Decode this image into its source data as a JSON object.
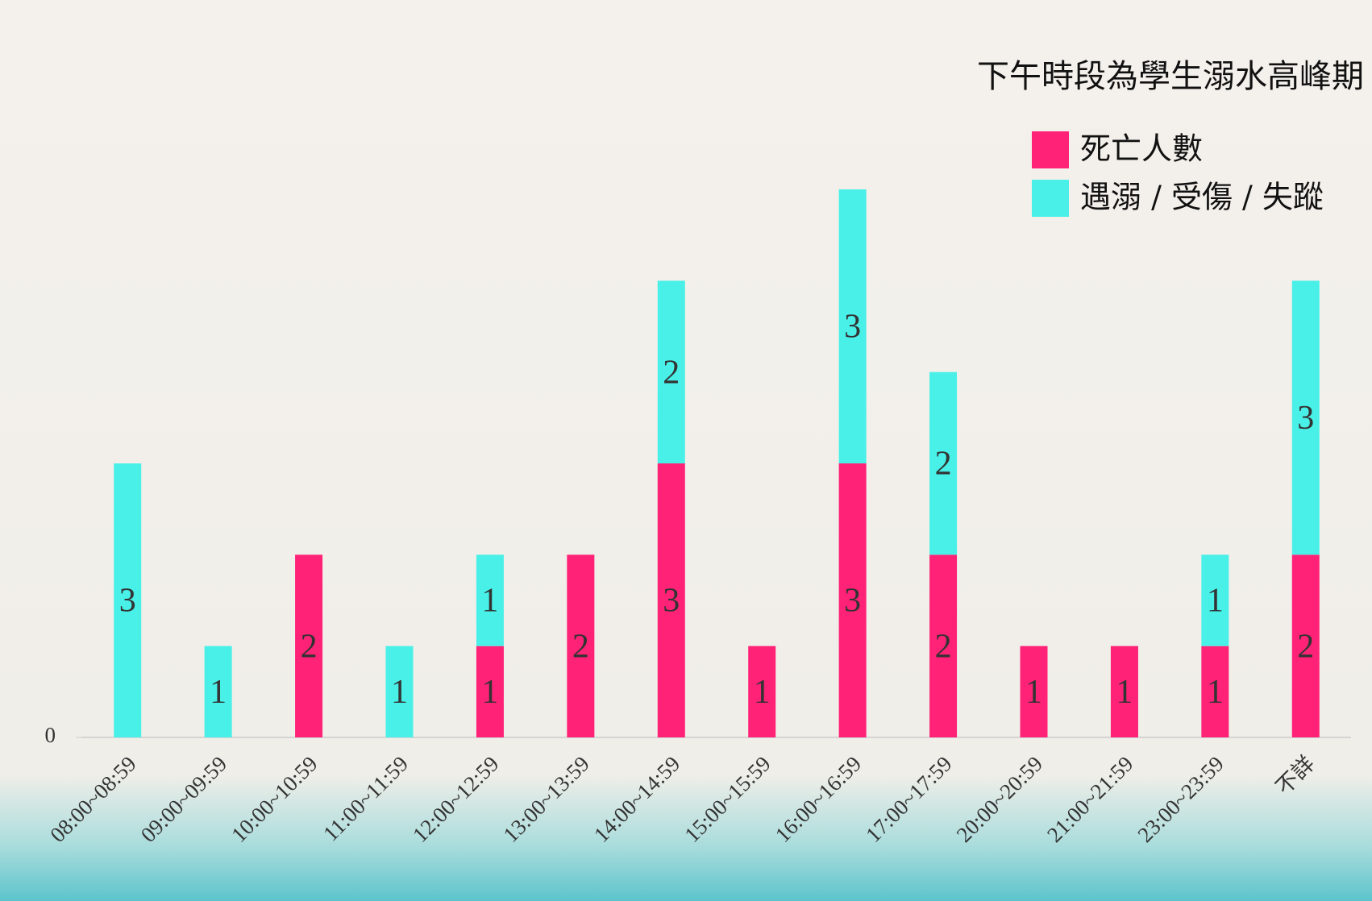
{
  "chart_data": {
    "type": "stacked-bar",
    "annotation": "下午時段為學生溺水高峰期",
    "categories": [
      "08:00~08:59",
      "09:00~09:59",
      "10:00~10:59",
      "11:00~11:59",
      "12:00~12:59",
      "13:00~13:59",
      "14:00~14:59",
      "15:00~15:59",
      "16:00~16:59",
      "17:00~17:59",
      "20:00~20:59",
      "21:00~21:59",
      "23:00~23:59",
      "不詳"
    ],
    "series": [
      {
        "name": "死亡人數",
        "color": "#ff2277",
        "values": [
          null,
          null,
          2,
          null,
          1,
          2,
          3,
          1,
          3,
          2,
          1,
          1,
          1,
          2
        ]
      },
      {
        "name": "遇溺 / 受傷 / 失蹤",
        "color": "#48f0e8",
        "values": [
          3,
          1,
          null,
          1,
          1,
          null,
          2,
          null,
          3,
          2,
          null,
          null,
          1,
          3
        ]
      }
    ],
    "ylim": [
      0,
      7.5
    ],
    "yticks": [
      0
    ],
    "legend": "top-right"
  }
}
